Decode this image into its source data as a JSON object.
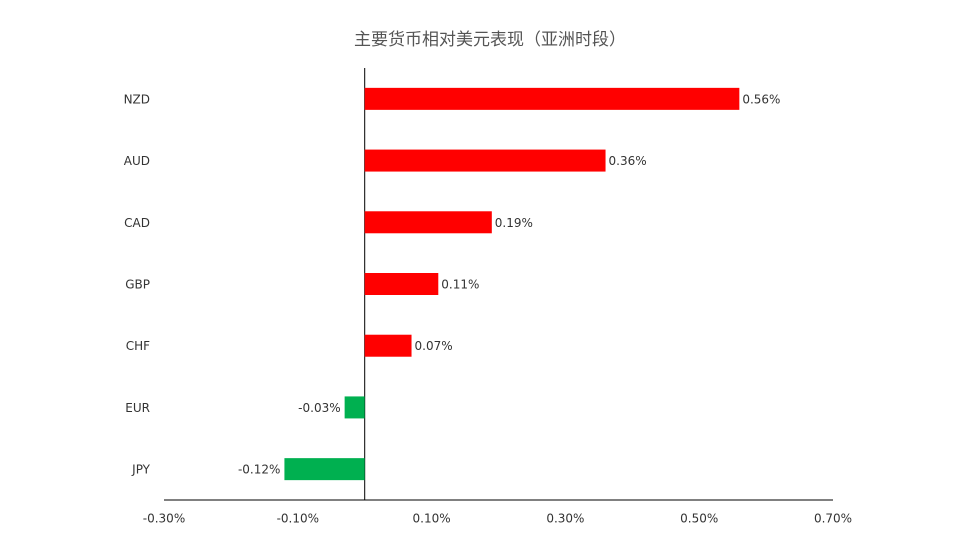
{
  "chart_data": {
    "type": "hbar",
    "title": "主要货币相对美元表现（亚洲时段）",
    "categories": [
      "NZD",
      "AUD",
      "CAD",
      "GBP",
      "CHF",
      "EUR",
      "JPY"
    ],
    "values": [
      0.56,
      0.36,
      0.19,
      0.11,
      0.07,
      -0.03,
      -0.12
    ],
    "value_labels": [
      "0.56%",
      "0.36%",
      "0.19%",
      "0.11%",
      "0.07%",
      "-0.03%",
      "-0.12%"
    ],
    "colors": [
      "#ff0000",
      "#ff0000",
      "#ff0000",
      "#ff0000",
      "#ff0000",
      "#00b050",
      "#00b050"
    ],
    "xlim": [
      -0.3,
      0.7
    ],
    "xticks": [
      {
        "value": -0.3,
        "label": "-0.30%"
      },
      {
        "value": -0.1,
        "label": "-0.10%"
      },
      {
        "value": 0.1,
        "label": "0.10%"
      },
      {
        "value": 0.3,
        "label": "0.30%"
      },
      {
        "value": 0.5,
        "label": "0.50%"
      },
      {
        "value": 0.7,
        "label": "0.70%"
      }
    ],
    "grid": false
  }
}
